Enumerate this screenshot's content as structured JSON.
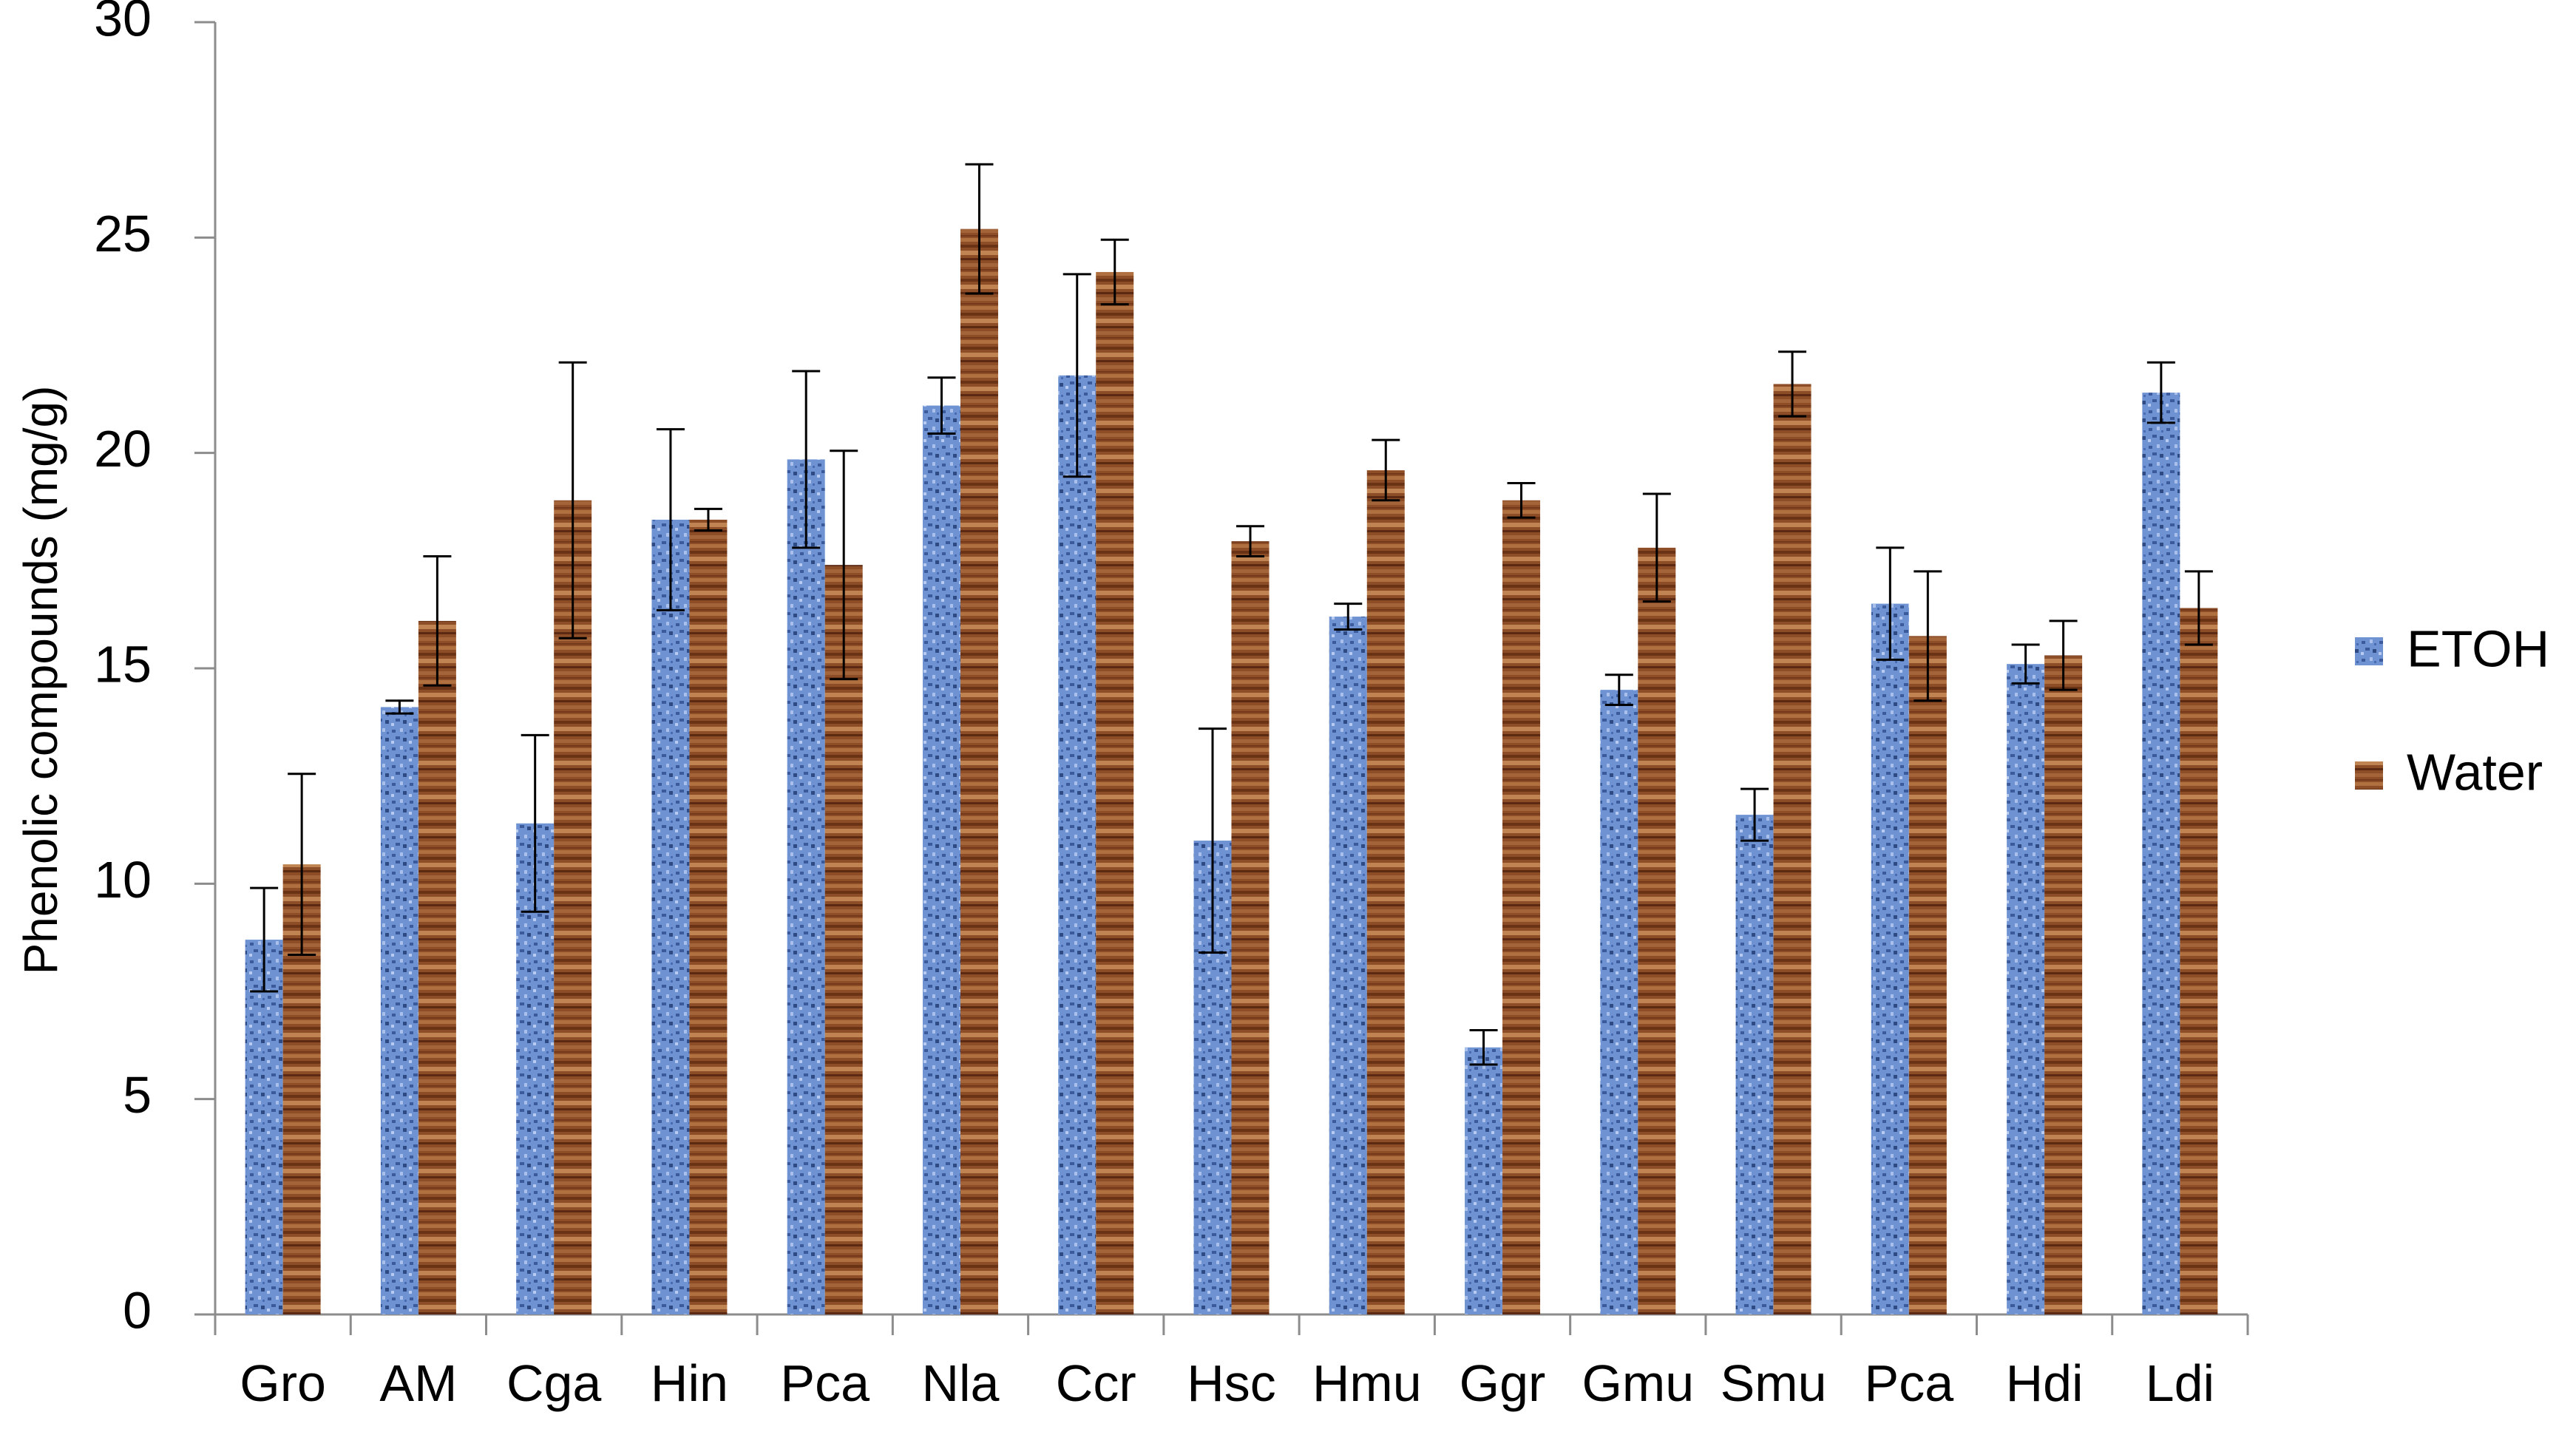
{
  "chart_data": {
    "type": "bar",
    "title": "",
    "xlabel": "",
    "ylabel": "Phenolic compounds (mg/g)",
    "ylim": [
      0,
      30
    ],
    "yticks": [
      0,
      5,
      10,
      15,
      20,
      25,
      30
    ],
    "grid": false,
    "legend_position": "right",
    "categories": [
      "Gro",
      "AM",
      "Cga",
      "Hin",
      "Pca",
      "Nla",
      "Ccr",
      "Hsc",
      "Hmu",
      "Ggr",
      "Gmu",
      "Smu",
      "Pca",
      "Hdi",
      "Ldi"
    ],
    "series": [
      {
        "name": "ETOH",
        "color": "#5b7fc4",
        "values": [
          8.7,
          14.1,
          11.4,
          18.45,
          19.85,
          21.1,
          21.8,
          11.0,
          16.2,
          6.2,
          14.5,
          11.6,
          16.5,
          15.1,
          21.4
        ],
        "errors": [
          1.2,
          0.15,
          2.05,
          2.1,
          2.05,
          0.65,
          2.35,
          2.6,
          0.3,
          0.4,
          0.35,
          0.6,
          1.3,
          0.45,
          0.7
        ]
      },
      {
        "name": "Water",
        "color": "#8a4a24",
        "values": [
          10.45,
          16.1,
          18.9,
          18.45,
          17.4,
          25.2,
          24.2,
          17.95,
          19.6,
          18.9,
          17.8,
          21.6,
          15.75,
          15.3,
          16.4
        ],
        "errors": [
          2.1,
          1.5,
          3.2,
          0.25,
          2.65,
          1.5,
          0.75,
          0.35,
          0.7,
          0.4,
          1.25,
          0.75,
          1.5,
          0.8,
          0.85
        ]
      }
    ]
  }
}
